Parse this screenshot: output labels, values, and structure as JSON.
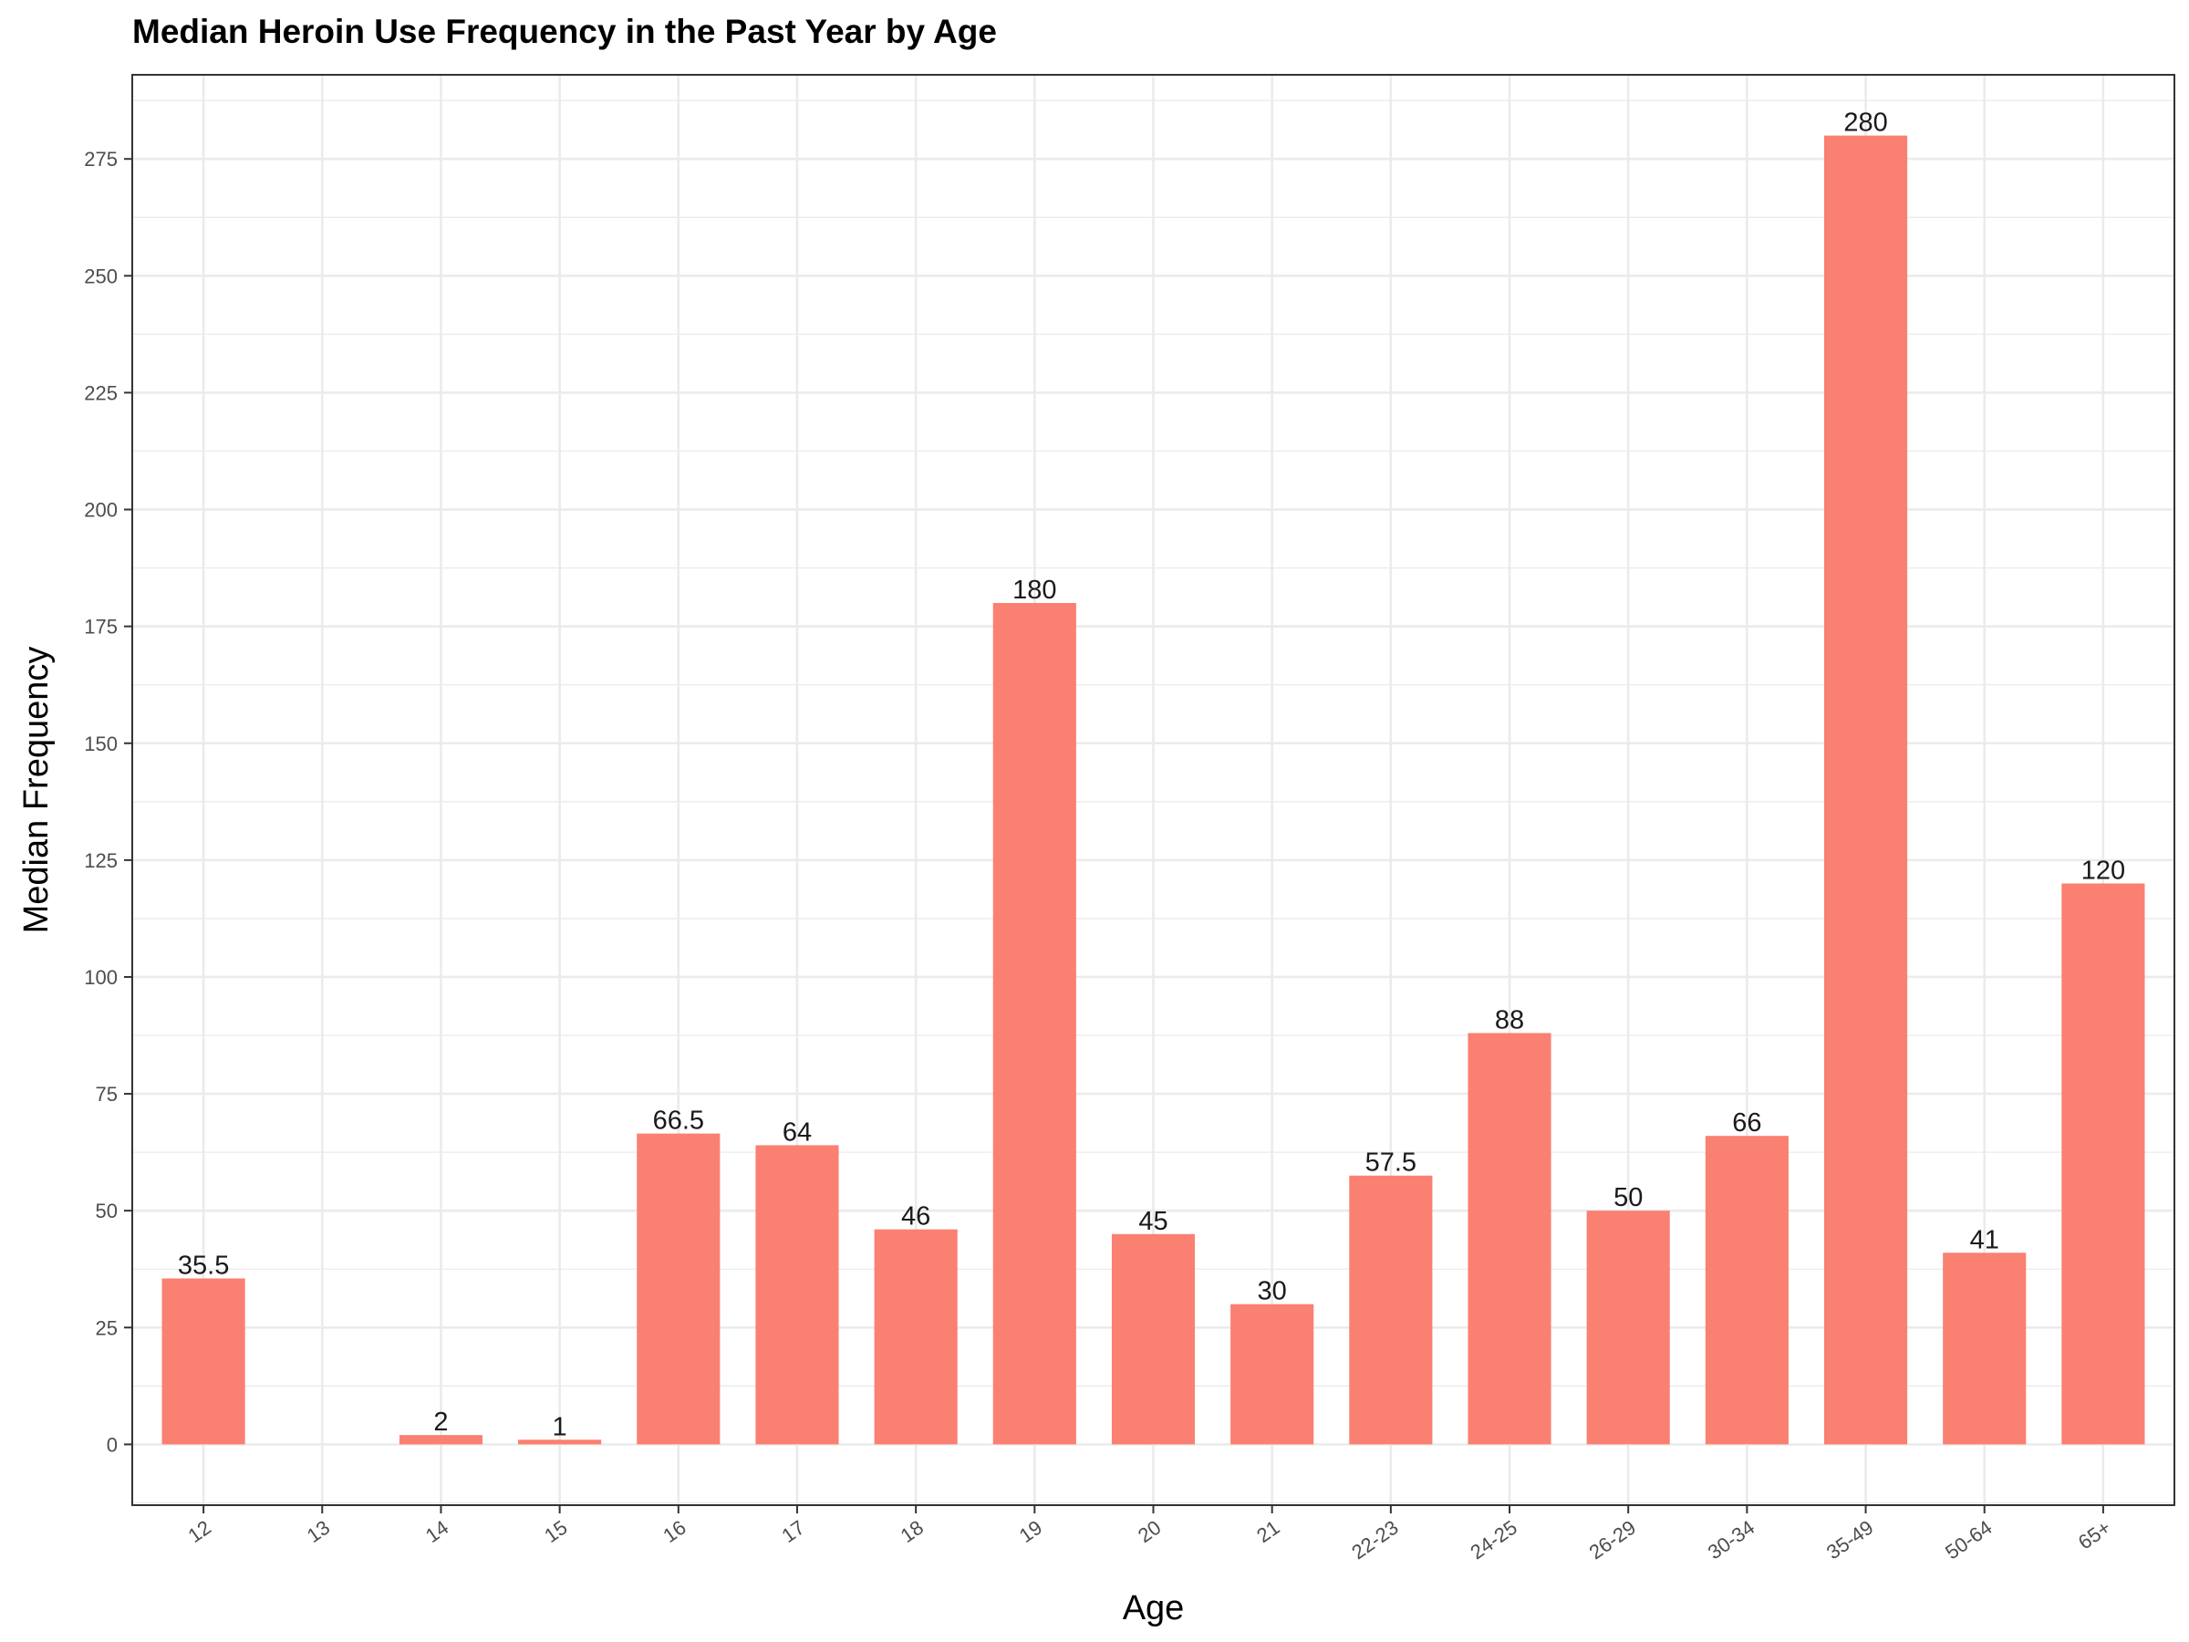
{
  "chart_data": {
    "type": "bar",
    "title": "Median Heroin Use Frequency in the Past Year by Age",
    "xlabel": "Age",
    "ylabel": "Median Frequency",
    "categories": [
      "12",
      "13",
      "14",
      "15",
      "16",
      "17",
      "18",
      "19",
      "20",
      "21",
      "22-23",
      "24-25",
      "26-29",
      "30-34",
      "35-49",
      "50-64",
      "65+"
    ],
    "values": [
      35.5,
      null,
      2,
      1,
      66.5,
      64,
      46,
      180,
      45,
      30,
      57.5,
      88,
      50,
      66,
      280,
      41,
      120
    ],
    "data_labels": [
      "35.5",
      "",
      "2",
      "1",
      "66.5",
      "64",
      "46",
      "180",
      "45",
      "30",
      "57.5",
      "88",
      "50",
      "66",
      "280",
      "41",
      "120"
    ],
    "ylim": [
      -13,
      293
    ],
    "yticks": [
      0,
      25,
      50,
      75,
      100,
      125,
      150,
      175,
      200,
      225,
      250,
      275
    ],
    "grid": true,
    "legend": "none",
    "colors": {
      "bar": "#FA8072",
      "grid": "#EBEBEB",
      "panel_border": "#333333"
    }
  }
}
